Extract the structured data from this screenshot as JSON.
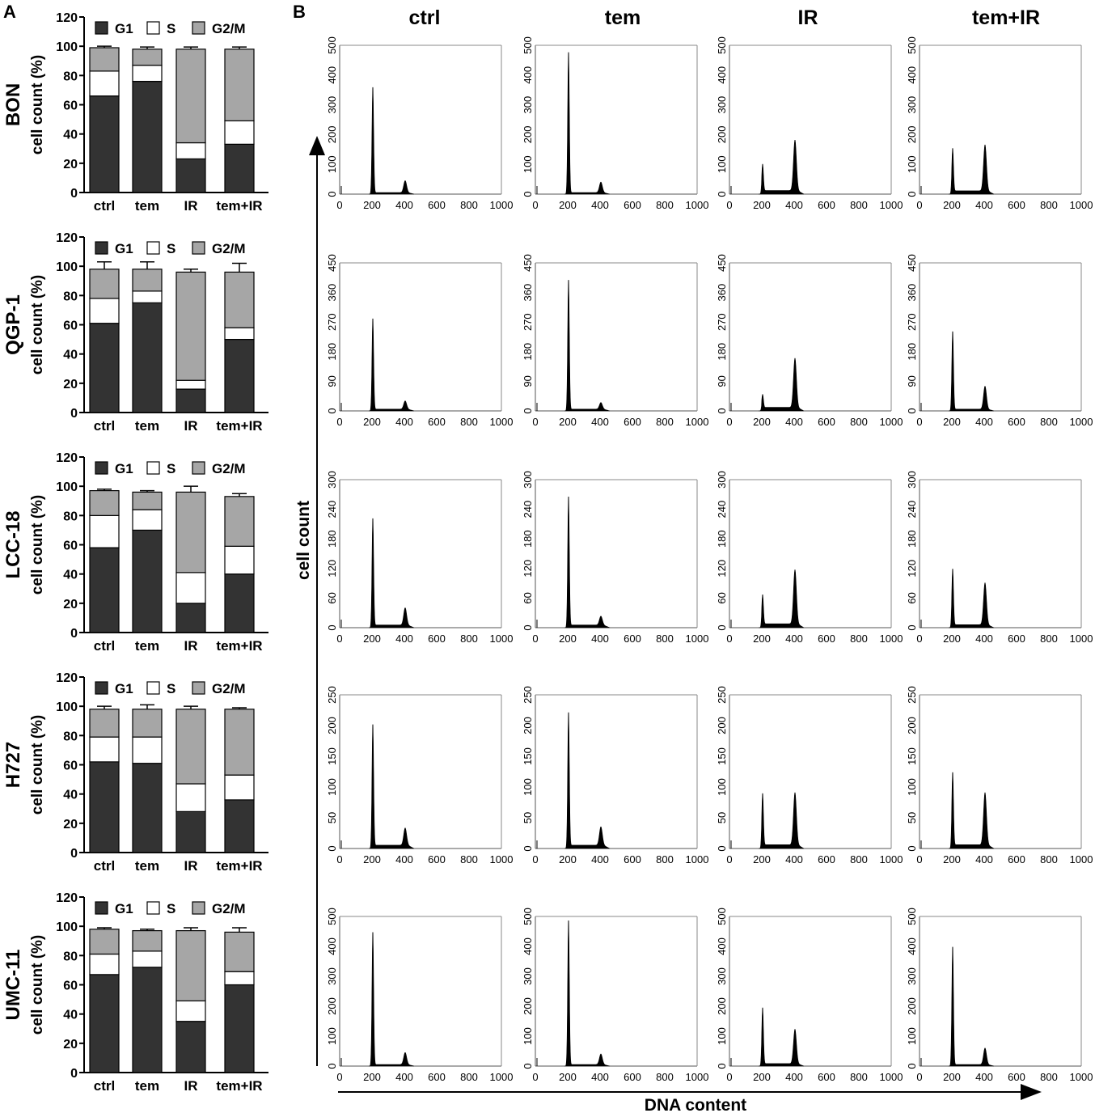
{
  "panel_labels": {
    "a": "A",
    "b": "B"
  },
  "legend_labels": [
    "G1",
    "S",
    "G2/M"
  ],
  "axis_labels": {
    "bar_y": "cell count (%)",
    "hist_y": "cell count",
    "hist_x": "DNA content"
  },
  "column_titles": [
    "ctrl",
    "tem",
    "IR",
    "tem+IR"
  ],
  "colors": {
    "G1": "#333333",
    "S": "#ffffff",
    "G2/M": "#a6a6a6",
    "histogram": "#000000"
  },
  "chart_data": [
    {
      "type": "bar",
      "stacked": true,
      "title": "BON",
      "ylabel": "cell count (%)",
      "ylim": [
        0,
        120
      ],
      "yticks": [
        0,
        20,
        40,
        60,
        80,
        100,
        120
      ],
      "categories": [
        "ctrl",
        "tem",
        "IR",
        "tem+IR"
      ],
      "legend": "top",
      "series": [
        {
          "name": "G1",
          "values": [
            66,
            76,
            23,
            33
          ],
          "errors": [
            1,
            1,
            1.5,
            2
          ]
        },
        {
          "name": "S",
          "values": [
            17,
            11,
            11,
            16
          ],
          "errors": [
            1,
            1,
            1,
            1.5
          ]
        },
        {
          "name": "G2/M",
          "values": [
            16,
            11,
            64,
            49
          ],
          "errors": [
            1,
            1.5,
            1.5,
            1.5
          ]
        }
      ]
    },
    {
      "type": "bar",
      "stacked": true,
      "title": "QGP-1",
      "ylabel": "cell count (%)",
      "ylim": [
        0,
        120
      ],
      "yticks": [
        0,
        20,
        40,
        60,
        80,
        100,
        120
      ],
      "categories": [
        "ctrl",
        "tem",
        "IR",
        "tem+IR"
      ],
      "legend": "top",
      "series": [
        {
          "name": "G1",
          "values": [
            61,
            75,
            16,
            50
          ],
          "errors": [
            7,
            1,
            1,
            1
          ]
        },
        {
          "name": "S",
          "values": [
            17,
            8,
            6,
            8
          ],
          "errors": [
            1,
            3,
            1,
            1
          ]
        },
        {
          "name": "G2/M",
          "values": [
            20,
            15,
            74,
            38
          ],
          "errors": [
            5,
            5,
            2,
            6
          ]
        }
      ]
    },
    {
      "type": "bar",
      "stacked": true,
      "title": "LCC-18",
      "ylabel": "cell count (%)",
      "ylim": [
        0,
        120
      ],
      "yticks": [
        0,
        20,
        40,
        60,
        80,
        100,
        120
      ],
      "categories": [
        "ctrl",
        "tem",
        "IR",
        "tem+IR"
      ],
      "legend": "top",
      "series": [
        {
          "name": "G1",
          "values": [
            58,
            70,
            20,
            40
          ],
          "errors": [
            4,
            2,
            2,
            7
          ]
        },
        {
          "name": "S",
          "values": [
            22,
            14,
            21,
            19
          ],
          "errors": [
            2,
            1,
            2,
            6
          ]
        },
        {
          "name": "G2/M",
          "values": [
            17,
            12,
            55,
            34
          ],
          "errors": [
            1,
            1,
            4,
            2
          ]
        }
      ]
    },
    {
      "type": "bar",
      "stacked": true,
      "title": "H727",
      "ylabel": "cell count (%)",
      "ylim": [
        0,
        120
      ],
      "yticks": [
        0,
        20,
        40,
        60,
        80,
        100,
        120
      ],
      "categories": [
        "ctrl",
        "tem",
        "IR",
        "tem+IR"
      ],
      "legend": "top",
      "series": [
        {
          "name": "G1",
          "values": [
            62,
            61,
            28,
            36
          ],
          "errors": [
            3,
            3,
            2,
            1
          ]
        },
        {
          "name": "S",
          "values": [
            17,
            18,
            19,
            17
          ],
          "errors": [
            1,
            1,
            1,
            2
          ]
        },
        {
          "name": "G2/M",
          "values": [
            19,
            19,
            51,
            45
          ],
          "errors": [
            2,
            3,
            2,
            1
          ]
        }
      ]
    },
    {
      "type": "bar",
      "stacked": true,
      "title": "UMC-11",
      "ylabel": "cell count (%)",
      "ylim": [
        0,
        120
      ],
      "yticks": [
        0,
        20,
        40,
        60,
        80,
        100,
        120
      ],
      "categories": [
        "ctrl",
        "tem",
        "IR",
        "tem+IR"
      ],
      "legend": "top",
      "series": [
        {
          "name": "G1",
          "values": [
            67,
            72,
            35,
            60
          ],
          "errors": [
            1,
            2,
            1,
            3
          ]
        },
        {
          "name": "S",
          "values": [
            14,
            11,
            14,
            9
          ],
          "errors": [
            1,
            1,
            2,
            1
          ]
        },
        {
          "name": "G2/M",
          "values": [
            17,
            14,
            48,
            27
          ],
          "errors": [
            1,
            1,
            2,
            3
          ]
        }
      ]
    },
    {
      "type": "area",
      "subtype": "flow-cytometry-histograms",
      "xlabel": "DNA content",
      "ylabel": "cell count",
      "xlim": [
        0,
        1000
      ],
      "xticks": [
        0,
        200,
        400,
        600,
        800,
        1000
      ],
      "columns": [
        "ctrl",
        "tem",
        "IR",
        "tem+IR"
      ],
      "rows": [
        {
          "cell_line": "BON",
          "ylim": [
            0,
            500
          ],
          "yticks": [
            0,
            100,
            200,
            300,
            400,
            500
          ],
          "peaks": [
            {
              "g1": 360,
              "g2": 40
            },
            {
              "g1": 480,
              "g2": 35
            },
            {
              "g1": 90,
              "g2": 170
            },
            {
              "g1": 145,
              "g2": 155
            }
          ]
        },
        {
          "cell_line": "QGP-1",
          "ylim": [
            0,
            450
          ],
          "yticks": [
            0,
            90,
            180,
            270,
            360,
            450
          ],
          "peaks": [
            {
              "g1": 280,
              "g2": 25
            },
            {
              "g1": 400,
              "g2": 20
            },
            {
              "g1": 40,
              "g2": 150
            },
            {
              "g1": 240,
              "g2": 70
            }
          ]
        },
        {
          "cell_line": "LCC-18",
          "ylim": [
            0,
            300
          ],
          "yticks": [
            0,
            60,
            120,
            180,
            240,
            300
          ],
          "peaks": [
            {
              "g1": 220,
              "g2": 35
            },
            {
              "g1": 265,
              "g2": 18
            },
            {
              "g1": 60,
              "g2": 110
            },
            {
              "g1": 115,
              "g2": 85
            }
          ]
        },
        {
          "cell_line": "H727",
          "ylim": [
            0,
            250
          ],
          "yticks": [
            0,
            50,
            100,
            150,
            200,
            250
          ],
          "peaks": [
            {
              "g1": 200,
              "g2": 28
            },
            {
              "g1": 220,
              "g2": 30
            },
            {
              "g1": 85,
              "g2": 85
            },
            {
              "g1": 120,
              "g2": 85
            }
          ]
        },
        {
          "cell_line": "UMC-11",
          "ylim": [
            0,
            500
          ],
          "yticks": [
            0,
            100,
            200,
            300,
            400,
            500
          ],
          "peaks": [
            {
              "g1": 450,
              "g2": 40
            },
            {
              "g1": 490,
              "g2": 35
            },
            {
              "g1": 190,
              "g2": 115
            },
            {
              "g1": 400,
              "g2": 55
            }
          ]
        }
      ]
    }
  ]
}
